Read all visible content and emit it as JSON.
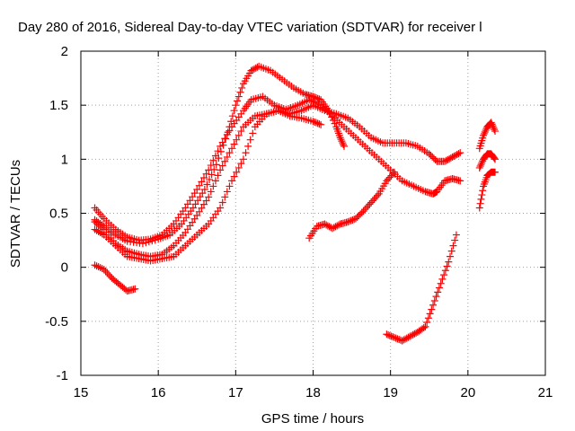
{
  "chart_data": {
    "type": "scatter",
    "title": "Day 280 of 2016, Sidereal Day-to-day VTEC variation (SDTVAR) for receiver l",
    "xlabel": "GPS time / hours",
    "ylabel": "SDTVAR / TECUs",
    "xlim": [
      15,
      21
    ],
    "ylim": [
      -1,
      2
    ],
    "xticks": [
      "15",
      "16",
      "17",
      "18",
      "19",
      "20",
      "21"
    ],
    "yticks": [
      "-1",
      "-0.5",
      "0",
      "0.5",
      "1",
      "1.5",
      "2"
    ],
    "grid": true,
    "marker": "+",
    "color": "#ff0000",
    "series": [
      {
        "points": [
          [
            15.18,
            0.44
          ],
          [
            15.3,
            0.38
          ],
          [
            15.45,
            0.3
          ],
          [
            15.6,
            0.24
          ],
          [
            15.8,
            0.22
          ],
          [
            16.0,
            0.26
          ],
          [
            16.15,
            0.3
          ],
          [
            16.3,
            0.4
          ],
          [
            16.45,
            0.55
          ],
          [
            16.6,
            0.72
          ],
          [
            16.75,
            0.95
          ],
          [
            16.9,
            1.25
          ],
          [
            17.0,
            1.5
          ],
          [
            17.1,
            1.7
          ],
          [
            17.2,
            1.82
          ],
          [
            17.3,
            1.86
          ],
          [
            17.45,
            1.82
          ],
          [
            17.6,
            1.74
          ],
          [
            17.75,
            1.66
          ],
          [
            17.9,
            1.6
          ],
          [
            18.0,
            1.58
          ],
          [
            18.1,
            1.55
          ],
          [
            18.2,
            1.45
          ],
          [
            18.3,
            1.3
          ],
          [
            18.35,
            1.2
          ],
          [
            18.4,
            1.12
          ]
        ]
      },
      {
        "points": [
          [
            15.18,
            0.55
          ],
          [
            15.3,
            0.45
          ],
          [
            15.45,
            0.35
          ],
          [
            15.6,
            0.28
          ],
          [
            15.75,
            0.25
          ],
          [
            15.9,
            0.26
          ],
          [
            16.05,
            0.3
          ],
          [
            16.2,
            0.4
          ],
          [
            16.35,
            0.55
          ],
          [
            16.5,
            0.72
          ],
          [
            16.65,
            0.9
          ],
          [
            16.8,
            1.12
          ],
          [
            16.95,
            1.3
          ],
          [
            17.1,
            1.45
          ],
          [
            17.2,
            1.55
          ],
          [
            17.35,
            1.58
          ],
          [
            17.5,
            1.5
          ],
          [
            17.65,
            1.46
          ],
          [
            17.8,
            1.5
          ],
          [
            17.95,
            1.55
          ],
          [
            18.1,
            1.5
          ],
          [
            18.25,
            1.4
          ],
          [
            18.4,
            1.3
          ],
          [
            18.55,
            1.2
          ],
          [
            18.7,
            1.1
          ],
          [
            18.85,
            1.0
          ],
          [
            19.0,
            0.9
          ],
          [
            19.15,
            0.8
          ],
          [
            19.3,
            0.75
          ],
          [
            19.45,
            0.7
          ],
          [
            19.55,
            0.68
          ],
          [
            19.6,
            0.7
          ],
          [
            19.7,
            0.8
          ],
          [
            19.8,
            0.82
          ],
          [
            19.9,
            0.8
          ]
        ]
      },
      {
        "points": [
          [
            15.18,
            0.42
          ],
          [
            15.3,
            0.35
          ],
          [
            15.45,
            0.22
          ],
          [
            15.6,
            0.15
          ],
          [
            15.75,
            0.12
          ],
          [
            15.9,
            0.1
          ],
          [
            16.05,
            0.12
          ],
          [
            16.2,
            0.2
          ],
          [
            16.35,
            0.32
          ],
          [
            16.5,
            0.48
          ],
          [
            16.65,
            0.65
          ],
          [
            16.8,
            0.9
          ],
          [
            16.95,
            1.1
          ],
          [
            17.1,
            1.3
          ],
          [
            17.25,
            1.4
          ],
          [
            17.4,
            1.42
          ],
          [
            17.55,
            1.45
          ],
          [
            17.7,
            1.42
          ],
          [
            17.85,
            1.45
          ],
          [
            18.0,
            1.5
          ],
          [
            18.15,
            1.45
          ],
          [
            18.3,
            1.42
          ],
          [
            18.45,
            1.38
          ],
          [
            18.6,
            1.3
          ],
          [
            18.75,
            1.2
          ],
          [
            18.9,
            1.15
          ],
          [
            19.05,
            1.15
          ],
          [
            19.2,
            1.15
          ],
          [
            19.35,
            1.12
          ],
          [
            19.5,
            1.05
          ],
          [
            19.6,
            0.98
          ],
          [
            19.7,
            0.98
          ],
          [
            19.8,
            1.02
          ],
          [
            19.9,
            1.06
          ]
        ]
      },
      {
        "points": [
          [
            15.18,
            0.35
          ],
          [
            15.3,
            0.3
          ],
          [
            15.45,
            0.2
          ],
          [
            15.6,
            0.1
          ],
          [
            15.75,
            0.08
          ],
          [
            15.9,
            0.06
          ],
          [
            16.05,
            0.08
          ],
          [
            16.2,
            0.1
          ],
          [
            16.35,
            0.2
          ],
          [
            16.5,
            0.3
          ],
          [
            16.65,
            0.4
          ],
          [
            16.8,
            0.55
          ],
          [
            16.95,
            0.8
          ],
          [
            17.1,
            1.0
          ],
          [
            17.25,
            1.3
          ],
          [
            17.4,
            1.42
          ],
          [
            17.55,
            1.45
          ],
          [
            17.7,
            1.4
          ],
          [
            17.85,
            1.38
          ],
          [
            18.0,
            1.35
          ],
          [
            18.1,
            1.32
          ]
        ]
      },
      {
        "points": [
          [
            15.18,
            0.02
          ],
          [
            15.3,
            -0.02
          ],
          [
            15.4,
            -0.1
          ],
          [
            15.5,
            -0.16
          ],
          [
            15.6,
            -0.22
          ],
          [
            15.7,
            -0.2
          ]
        ]
      },
      {
        "points": [
          [
            17.95,
            0.27
          ],
          [
            18.05,
            0.38
          ],
          [
            18.15,
            0.4
          ],
          [
            18.25,
            0.36
          ],
          [
            18.35,
            0.4
          ],
          [
            18.45,
            0.42
          ],
          [
            18.55,
            0.45
          ],
          [
            18.65,
            0.52
          ],
          [
            18.75,
            0.6
          ],
          [
            18.85,
            0.68
          ],
          [
            18.95,
            0.8
          ],
          [
            19.05,
            0.88
          ]
        ]
      },
      {
        "points": [
          [
            18.95,
            -0.62
          ],
          [
            19.05,
            -0.65
          ],
          [
            19.15,
            -0.68
          ],
          [
            19.25,
            -0.64
          ],
          [
            19.35,
            -0.6
          ],
          [
            19.45,
            -0.55
          ],
          [
            19.55,
            -0.35
          ],
          [
            19.65,
            -0.15
          ],
          [
            19.75,
            0.05
          ],
          [
            19.85,
            0.3
          ]
        ]
      },
      {
        "points": [
          [
            20.15,
            0.55
          ],
          [
            20.2,
            0.75
          ],
          [
            20.25,
            0.85
          ],
          [
            20.3,
            0.88
          ],
          [
            20.35,
            0.88
          ]
        ]
      },
      {
        "points": [
          [
            20.15,
            0.92
          ],
          [
            20.2,
            1.0
          ],
          [
            20.25,
            1.05
          ],
          [
            20.3,
            1.05
          ],
          [
            20.35,
            1.0
          ]
        ]
      },
      {
        "points": [
          [
            20.15,
            1.1
          ],
          [
            20.2,
            1.22
          ],
          [
            20.25,
            1.3
          ],
          [
            20.3,
            1.34
          ],
          [
            20.35,
            1.26
          ]
        ]
      }
    ]
  }
}
